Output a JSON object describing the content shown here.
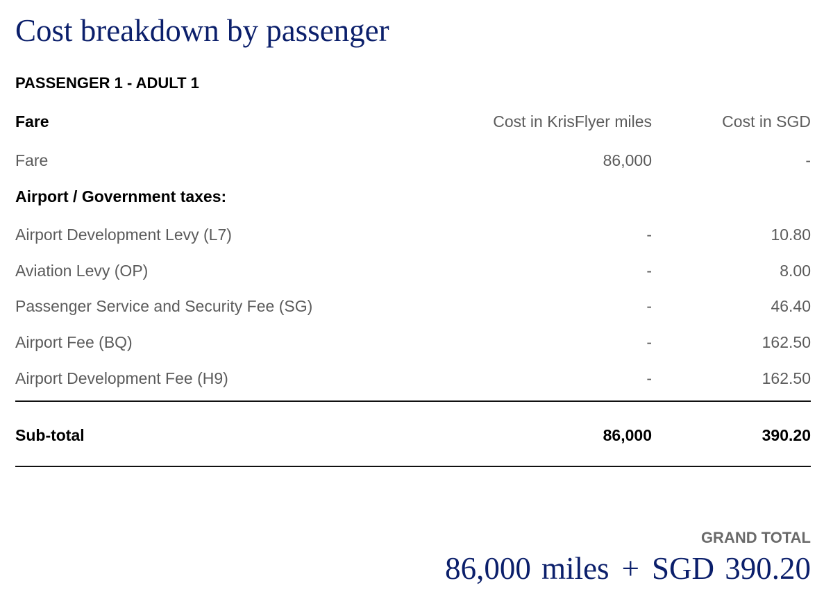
{
  "title": "Cost breakdown by passenger",
  "passenger": {
    "heading": "PASSENGER 1 - ADULT 1"
  },
  "columns": {
    "section": "Fare",
    "miles": "Cost in KrisFlyer miles",
    "sgd": "Cost in SGD"
  },
  "fare": {
    "label": "Fare",
    "miles": "86,000",
    "sgd": "-"
  },
  "taxes": {
    "heading": "Airport / Government taxes:",
    "items": [
      {
        "label": "Airport Development Levy (L7)",
        "miles": "-",
        "sgd": "10.80"
      },
      {
        "label": "Aviation Levy (OP)",
        "miles": "-",
        "sgd": "8.00"
      },
      {
        "label": "Passenger Service and Security Fee (SG)",
        "miles": "-",
        "sgd": "46.40"
      },
      {
        "label": "Airport Fee (BQ)",
        "miles": "-",
        "sgd": "162.50"
      },
      {
        "label": "Airport Development Fee (H9)",
        "miles": "-",
        "sgd": "162.50"
      }
    ]
  },
  "subtotal": {
    "label": "Sub-total",
    "miles": "86,000",
    "sgd": "390.20"
  },
  "grand_total": {
    "label": "GRAND TOTAL",
    "miles": "86,000 miles",
    "plus": "+",
    "sgd": "SGD 390.20"
  },
  "colors": {
    "brand_navy": "#0b1f6b",
    "muted_text": "#5b5b5b",
    "rule": "#111111"
  }
}
